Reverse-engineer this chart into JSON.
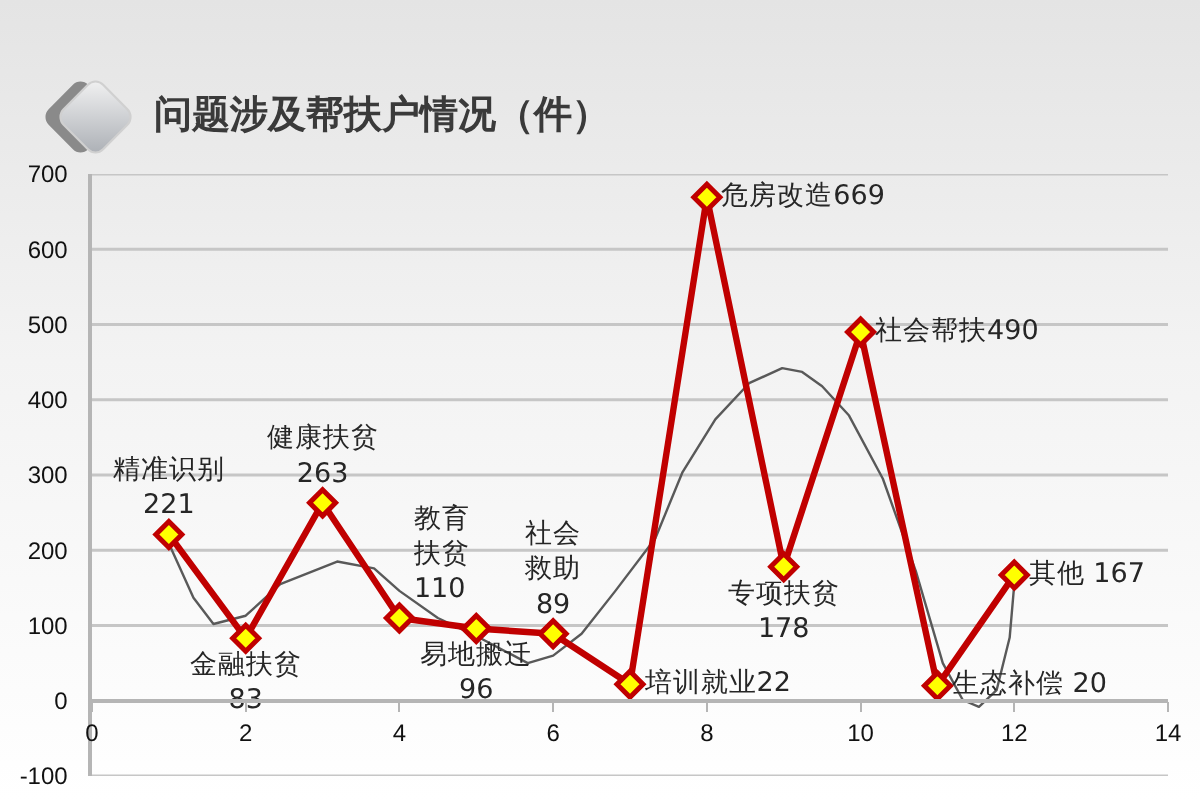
{
  "chart_data": {
    "type": "line",
    "title": "问题涉及帮扶户情况（件）",
    "x": [
      1,
      2,
      3,
      4,
      5,
      6,
      7,
      8,
      9,
      10,
      11,
      12
    ],
    "xlim": [
      0,
      14
    ],
    "xticks": [
      0,
      2,
      4,
      6,
      8,
      10,
      12,
      14
    ],
    "ylim": [
      -100,
      700
    ],
    "yticks": [
      -100,
      0,
      100,
      200,
      300,
      400,
      500,
      600,
      700
    ],
    "grid": "y",
    "marker": "diamond",
    "line_style": "solid",
    "series": [
      {
        "color": "#c00000",
        "values": [
          221,
          83,
          263,
          110,
          96,
          89,
          22,
          669,
          178,
          490,
          20,
          167
        ],
        "value_labels": [
          "精准识别\n221",
          "金融扶贫\n83",
          "健康扶贫\n263",
          "教育扶贫\n110",
          "易地搬迁\n96",
          "社会救助\n89",
          "培训就业22",
          "危房改造669",
          "专项扶贫\n178",
          "社会帮扶490",
          "生态补偿 20",
          "其他 167"
        ]
      },
      {
        "type": "line",
        "color": "#595959",
        "marker": "none",
        "x": [
          1,
          1.32,
          1.58,
          2,
          2.45,
          3.19,
          3.67,
          4,
          4.5,
          5,
          5.67,
          6,
          6.37,
          6.81,
          7.33,
          7.68,
          8.11,
          8.55,
          8.98,
          9.24,
          9.5,
          9.85,
          10.29,
          10.72,
          11.07,
          11.33,
          11.54,
          11.77,
          11.94,
          12
        ],
        "values": [
          209,
          137,
          102,
          113,
          155,
          185,
          176,
          146,
          110,
          86,
          50,
          60,
          89,
          146,
          216,
          303,
          374,
          422,
          442,
          437,
          418,
          379,
          295,
          172,
          50,
          1,
          -8,
          14,
          84,
          155
        ]
      }
    ]
  }
}
